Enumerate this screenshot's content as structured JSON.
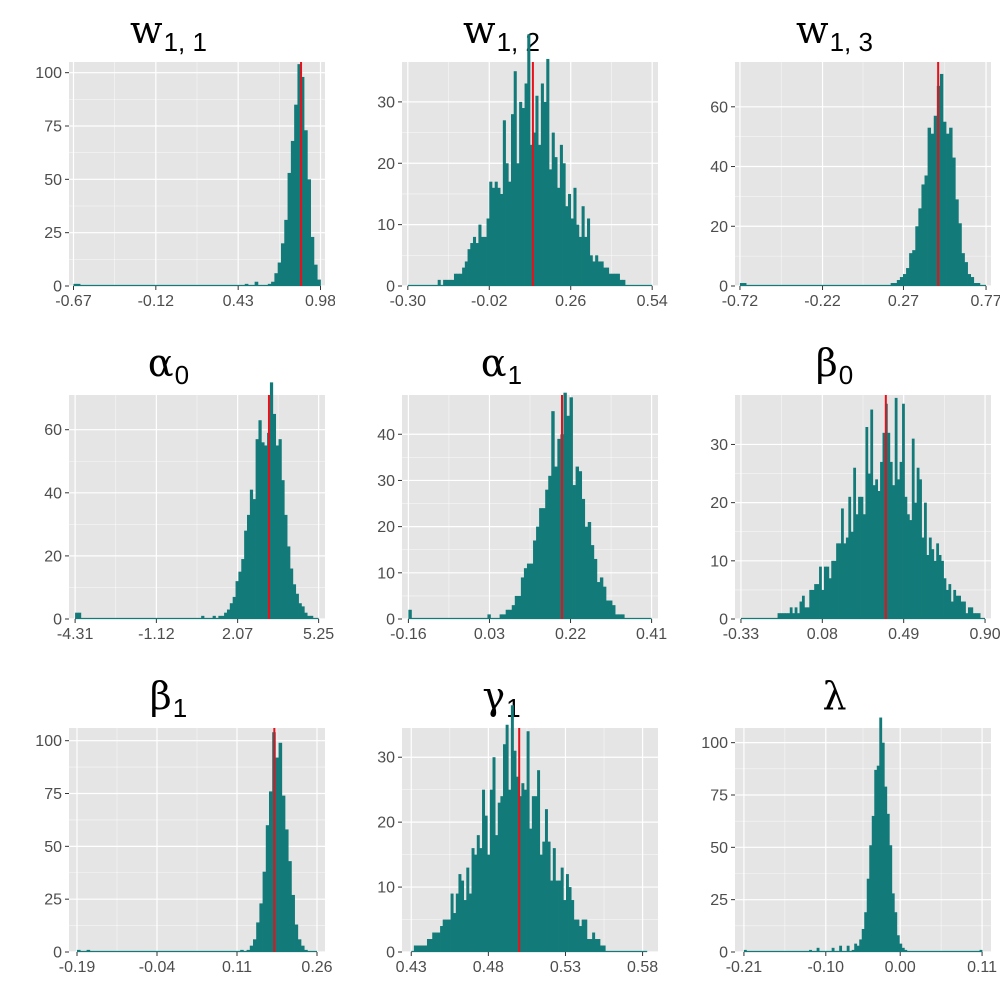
{
  "colors": {
    "bar": "#127A78",
    "vline": "#E8101A",
    "panel_bg": "#E5E5E5",
    "grid": "#FFFFFF",
    "tick_text": "#4D4D4D"
  },
  "chart_data": [
    {
      "type": "histogram",
      "title": "w",
      "title_sub": "1, 1",
      "xticks": [
        -0.67,
        -0.12,
        0.43,
        0.98
      ],
      "xtick_labels": [
        "-0.67",
        "-0.12",
        "0.43",
        "0.98"
      ],
      "xlim": [
        -0.7,
        1.01
      ],
      "yticks": [
        0,
        25,
        50,
        75,
        100
      ],
      "ylim": [
        0,
        105
      ],
      "true_value": 0.85,
      "dist": {
        "center": 0.85,
        "left_sd": 0.07,
        "right_sd": 0.045,
        "peak": 100,
        "lo": -0.67,
        "hi": 0.98,
        "bins": 75,
        "seed": 11,
        "noise": 0.12,
        "tail": [
          [
            -0.67,
            1
          ],
          [
            -0.63,
            1
          ],
          [
            0.48,
            1
          ],
          [
            0.55,
            2
          ]
        ]
      }
    },
    {
      "type": "histogram",
      "title": "w",
      "title_sub": "1, 2",
      "xticks": [
        -0.3,
        -0.02,
        0.26,
        0.54
      ],
      "xtick_labels": [
        "-0.30",
        "-0.02",
        "0.26",
        "0.54"
      ],
      "xlim": [
        -0.32,
        0.56
      ],
      "yticks": [
        0,
        10,
        20,
        30
      ],
      "ylim": [
        0,
        36.5
      ],
      "true_value": 0.13,
      "dist": {
        "center": 0.13,
        "left_sd": 0.115,
        "right_sd": 0.115,
        "peak": 31,
        "lo": -0.3,
        "hi": 0.54,
        "bins": 90,
        "seed": 23,
        "noise": 0.35,
        "tail": []
      }
    },
    {
      "type": "histogram",
      "title": "w",
      "title_sub": "1, 3",
      "xticks": [
        -0.72,
        -0.22,
        0.27,
        0.77
      ],
      "xtick_labels": [
        "-0.72",
        "-0.22",
        "0.27",
        "0.77"
      ],
      "xlim": [
        -0.75,
        0.8
      ],
      "yticks": [
        0,
        20,
        40,
        60
      ],
      "ylim": [
        0,
        75
      ],
      "true_value": 0.48,
      "dist": {
        "center": 0.49,
        "left_sd": 0.09,
        "right_sd": 0.075,
        "peak": 68,
        "lo": -0.72,
        "hi": 0.77,
        "bins": 80,
        "seed": 37,
        "noise": 0.2,
        "tail": [
          [
            -0.72,
            1
          ],
          [
            -0.69,
            1
          ],
          [
            0.23,
            1
          ],
          [
            0.2,
            1
          ]
        ]
      }
    },
    {
      "type": "histogram",
      "title": "α",
      "title_sub": "0",
      "xticks": [
        -4.31,
        -1.12,
        2.07,
        5.25
      ],
      "xtick_labels": [
        "-4.31",
        "-1.12",
        "2.07",
        "5.25"
      ],
      "xlim": [
        -4.55,
        5.5
      ],
      "yticks": [
        0,
        20,
        40,
        60
      ],
      "ylim": [
        0,
        71
      ],
      "true_value": 3.3,
      "dist": {
        "center": 3.3,
        "left_sd": 0.65,
        "right_sd": 0.55,
        "peak": 66,
        "lo": -4.31,
        "hi": 5.25,
        "bins": 85,
        "seed": 41,
        "noise": 0.18,
        "tail": [
          [
            -4.31,
            2
          ],
          [
            -4.15,
            2
          ],
          [
            1.12,
            1
          ],
          [
            0.75,
            1
          ]
        ]
      }
    },
    {
      "type": "histogram",
      "title": "α",
      "title_sub": "1",
      "xticks": [
        -0.16,
        0.03,
        0.22,
        0.41
      ],
      "xtick_labels": [
        "-0.16",
        "0.03",
        "0.22",
        "0.41"
      ],
      "xlim": [
        -0.175,
        0.425
      ],
      "yticks": [
        0,
        10,
        20,
        30,
        40
      ],
      "ylim": [
        0,
        48.5
      ],
      "true_value": 0.2,
      "dist": {
        "center": 0.2,
        "left_sd": 0.05,
        "right_sd": 0.05,
        "peak": 44,
        "lo": -0.16,
        "hi": 0.41,
        "bins": 80,
        "seed": 53,
        "noise": 0.25,
        "tail": [
          [
            -0.16,
            2
          ],
          [
            0.03,
            1
          ]
        ]
      }
    },
    {
      "type": "histogram",
      "title": "β",
      "title_sub": "0",
      "xticks": [
        -0.33,
        0.08,
        0.49,
        0.9
      ],
      "xtick_labels": [
        "-0.33",
        "0.08",
        "0.49",
        "0.90"
      ],
      "xlim": [
        -0.36,
        0.93
      ],
      "yticks": [
        0,
        10,
        20,
        30
      ],
      "ylim": [
        0,
        38.5
      ],
      "true_value": 0.4,
      "dist": {
        "center": 0.4,
        "left_sd": 0.19,
        "right_sd": 0.17,
        "peak": 32,
        "lo": -0.33,
        "hi": 0.9,
        "bins": 100,
        "seed": 67,
        "noise": 0.35,
        "tail": []
      }
    },
    {
      "type": "histogram",
      "title": "β",
      "title_sub": "1",
      "xticks": [
        -0.19,
        -0.04,
        0.11,
        0.26
      ],
      "xtick_labels": [
        "-0.19",
        "-0.04",
        "0.11",
        "0.26"
      ],
      "xlim": [
        -0.205,
        0.275
      ],
      "yticks": [
        0,
        25,
        50,
        75,
        100
      ],
      "ylim": [
        0,
        106
      ],
      "true_value": 0.18,
      "dist": {
        "center": 0.185,
        "left_sd": 0.018,
        "right_sd": 0.018,
        "peak": 100,
        "lo": -0.19,
        "hi": 0.26,
        "bins": 75,
        "seed": 79,
        "noise": 0.1,
        "tail": [
          [
            -0.19,
            1
          ],
          [
            -0.17,
            1
          ],
          [
            0.12,
            1
          ]
        ]
      }
    },
    {
      "type": "histogram",
      "title": "γ",
      "title_sub": "1",
      "xticks": [
        0.43,
        0.48,
        0.53,
        0.58
      ],
      "xtick_labels": [
        "0.43",
        "0.48",
        "0.53",
        "0.58"
      ],
      "xlim": [
        0.424,
        0.59
      ],
      "yticks": [
        0,
        10,
        20,
        30
      ],
      "ylim": [
        0,
        34.5
      ],
      "true_value": 0.5,
      "dist": {
        "center": 0.498,
        "left_sd": 0.024,
        "right_sd": 0.022,
        "peak": 29,
        "lo": 0.43,
        "hi": 0.583,
        "bins": 90,
        "seed": 89,
        "noise": 0.35,
        "tail": []
      }
    },
    {
      "type": "histogram",
      "title": "λ",
      "title_sub": "",
      "xticks": [
        -0.21,
        -0.1,
        0.0,
        0.11
      ],
      "xtick_labels": [
        "-0.21",
        "-0.10",
        "0.00",
        "0.11"
      ],
      "xlim": [
        -0.222,
        0.122
      ],
      "yticks": [
        0,
        25,
        50,
        75,
        100
      ],
      "ylim": [
        0,
        107
      ],
      "true_value": null,
      "dist": {
        "center": -0.025,
        "left_sd": 0.012,
        "right_sd": 0.01,
        "peak": 102,
        "lo": -0.21,
        "hi": 0.11,
        "bins": 95,
        "seed": 97,
        "noise": 0.12,
        "tail": [
          [
            -0.21,
            1
          ],
          [
            -0.12,
            1
          ],
          [
            -0.11,
            2
          ],
          [
            -0.09,
            2
          ],
          [
            -0.08,
            3
          ],
          [
            -0.07,
            3
          ],
          [
            -0.06,
            4
          ],
          [
            0.11,
            1
          ]
        ]
      }
    }
  ]
}
